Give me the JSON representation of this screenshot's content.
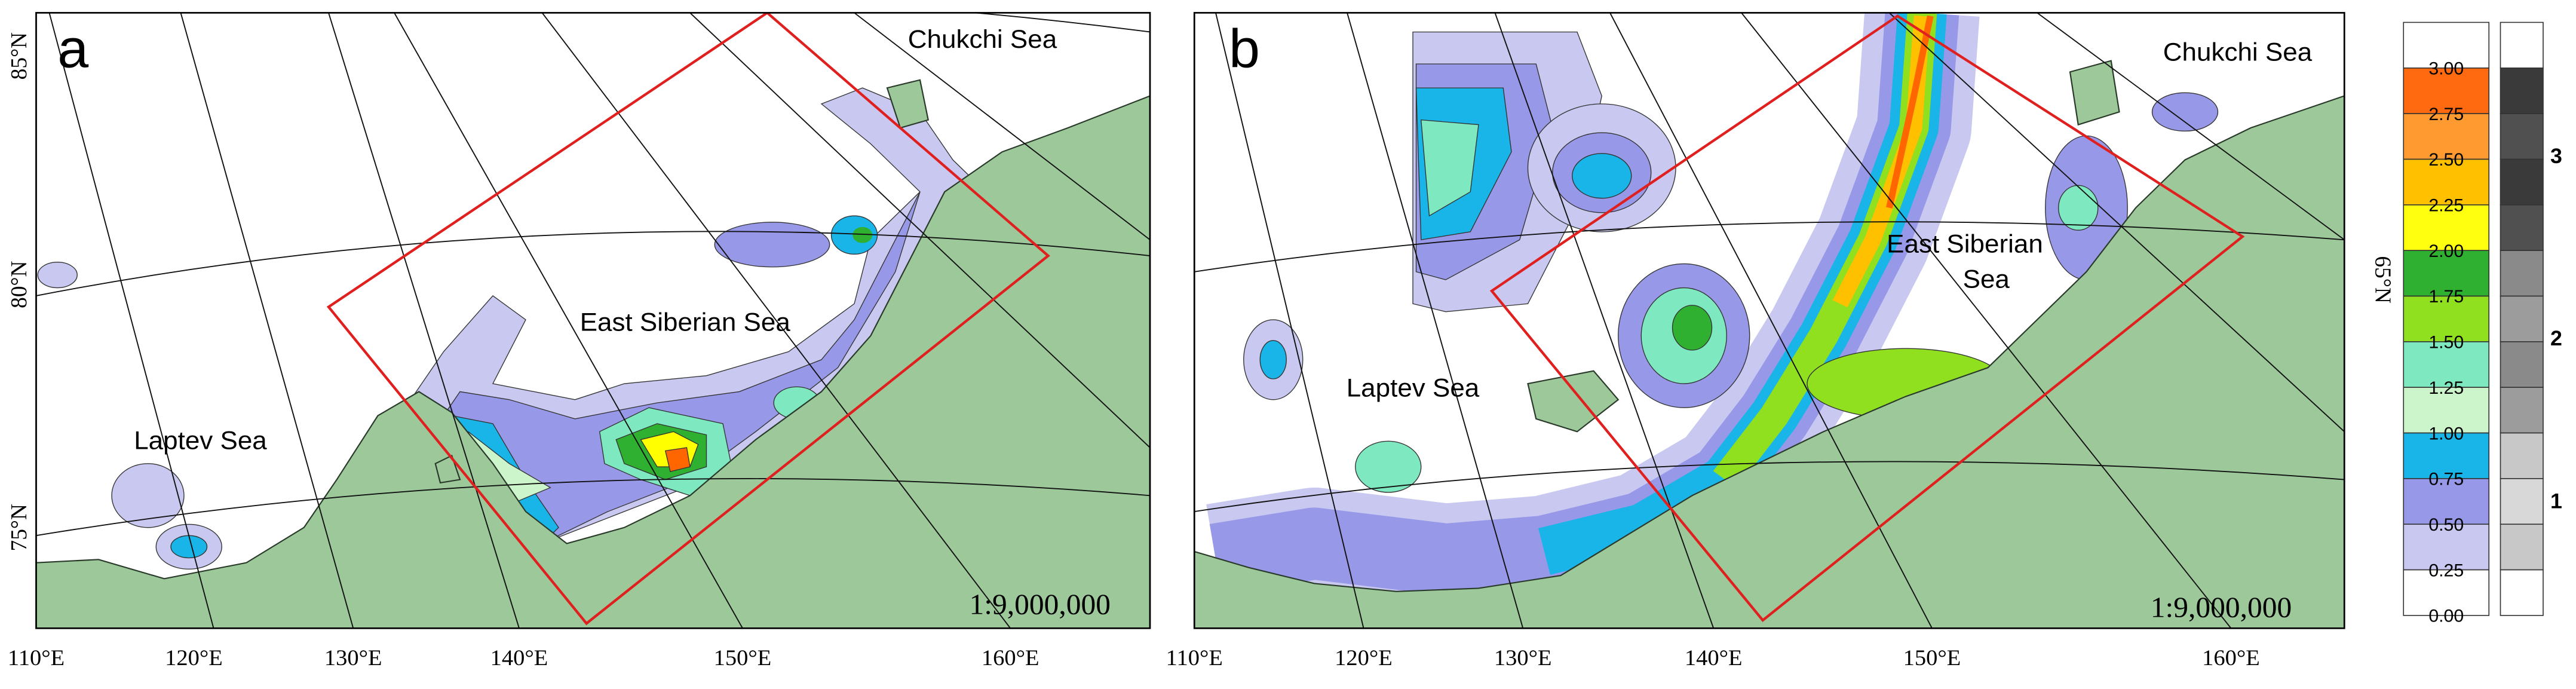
{
  "panels": [
    {
      "label": "a",
      "seas": [
        "Chukchi Sea",
        "East Siberian Sea",
        "Laptev Sea"
      ],
      "scale": "1:9,000,000",
      "latitudes": [
        "85°N",
        "80°N",
        "75°N"
      ],
      "longitudes": [
        "110°E",
        "120°E",
        "130°E",
        "140°E",
        "150°E",
        "160°E"
      ]
    },
    {
      "label": "b",
      "seas": [
        "Chukchi Sea",
        "East Siberian",
        "Sea",
        "Laptev Sea"
      ],
      "scale": "1:9,000,000",
      "latitudes": [
        "65°N"
      ],
      "longitudes": [
        "110°E",
        "120°E",
        "130°E",
        "140°E",
        "150°E",
        "160°E"
      ]
    }
  ],
  "colorbar": {
    "labels": [
      "3.00",
      "2.75",
      "2.50",
      "2.25",
      "2.00",
      "1.75",
      "1.50",
      "1.25",
      "1.00",
      "0.75",
      "0.50",
      "0.25",
      "0.00"
    ]
  },
  "graybar": {
    "labels": [
      "3",
      "2",
      "1"
    ]
  }
}
